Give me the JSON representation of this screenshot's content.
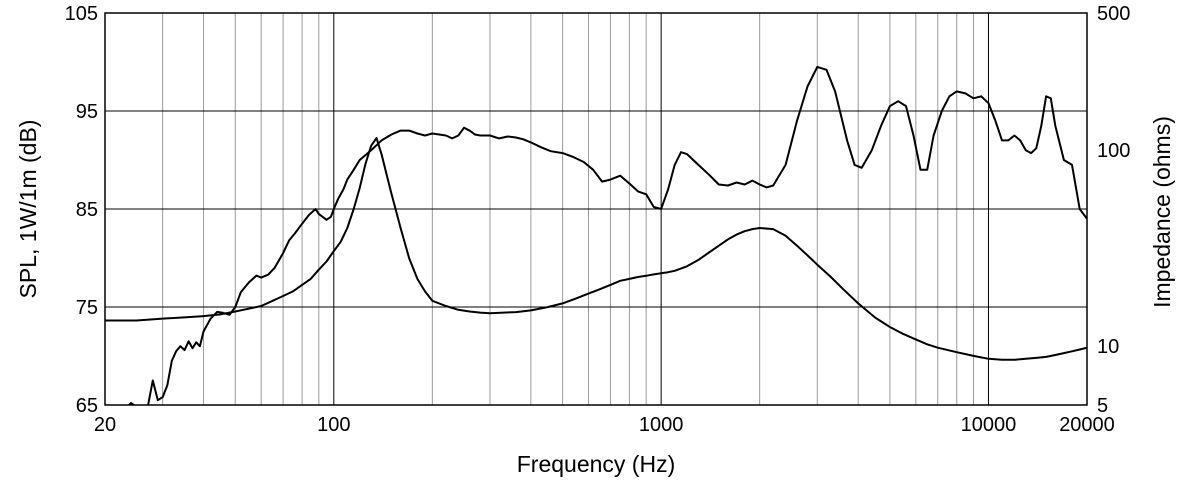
{
  "chart_data": {
    "type": "line",
    "xlabel": "Frequency (Hz)",
    "ylabel_left": "SPL, 1W/1m (dB)",
    "ylabel_right": "Impedance (ohms)",
    "x_scale": "log",
    "xlim": [
      20,
      20000
    ],
    "ylim_left": [
      65,
      105
    ],
    "ylim_right": [
      5,
      500
    ],
    "y_right_scale": "log",
    "grid": true,
    "x_ticks": [
      "20",
      "100",
      "1000",
      "10000",
      "20000"
    ],
    "y_left_ticks": [
      "65",
      "75",
      "85",
      "95",
      "105"
    ],
    "y_right_ticks": [
      "5",
      "10",
      "100",
      "500"
    ],
    "series": [
      {
        "axis": "left",
        "x": [
          20,
          22,
          23,
          24,
          25,
          26,
          27,
          28,
          29,
          30,
          31,
          32,
          33,
          34,
          35,
          36,
          37,
          38,
          39,
          40,
          42,
          44,
          46,
          48,
          50,
          52,
          55,
          58,
          60,
          63,
          66,
          70,
          73,
          76,
          80,
          84,
          88,
          90,
          95,
          98,
          100,
          103,
          107,
          110,
          115,
          120,
          125,
          130,
          135,
          140,
          150,
          160,
          170,
          180,
          190,
          200,
          210,
          220,
          230,
          240,
          250,
          260,
          270,
          280,
          300,
          320,
          340,
          360,
          380,
          400,
          430,
          460,
          500,
          540,
          580,
          620,
          660,
          700,
          750,
          800,
          850,
          900,
          950,
          1000,
          1050,
          1100,
          1150,
          1200,
          1300,
          1400,
          1500,
          1600,
          1700,
          1800,
          1900,
          2000,
          2100,
          2200,
          2400,
          2600,
          2800,
          3000,
          3200,
          3400,
          3700,
          3900,
          4100,
          4400,
          4700,
          5000,
          5300,
          5600,
          5900,
          6200,
          6500,
          6800,
          7200,
          7600,
          8000,
          8500,
          9000,
          9500,
          10000,
          10500,
          11000,
          11500,
          12000,
          12500,
          13000,
          13500,
          14000,
          14500,
          15000,
          15500,
          16000,
          17000,
          18000,
          19000,
          20000
        ],
        "values": [
          61.5,
          63.5,
          64.5,
          65.2,
          64.8,
          62.8,
          64.8,
          67.5,
          65.5,
          65.8,
          67.0,
          69.5,
          70.5,
          71.0,
          70.6,
          71.5,
          70.8,
          71.4,
          71.0,
          72.5,
          73.8,
          74.5,
          74.4,
          74.2,
          75.0,
          76.5,
          77.5,
          78.2,
          78.0,
          78.3,
          79.0,
          80.5,
          81.8,
          82.5,
          83.5,
          84.4,
          85.0,
          84.5,
          83.9,
          84.2,
          85.0,
          86.0,
          87.0,
          88.0,
          89.0,
          90.0,
          90.5,
          91.0,
          91.5,
          92.0,
          92.6,
          93.0,
          93.0,
          92.7,
          92.5,
          92.7,
          92.6,
          92.5,
          92.2,
          92.5,
          93.3,
          93.0,
          92.6,
          92.5,
          92.5,
          92.2,
          92.4,
          92.3,
          92.1,
          91.8,
          91.3,
          90.9,
          90.7,
          90.3,
          89.8,
          89.0,
          87.8,
          88.0,
          88.4,
          87.6,
          86.8,
          86.5,
          85.2,
          85.0,
          87.0,
          89.5,
          90.8,
          90.6,
          89.5,
          88.5,
          87.5,
          87.4,
          87.7,
          87.5,
          87.9,
          87.5,
          87.2,
          87.4,
          89.5,
          94.0,
          97.5,
          99.5,
          99.2,
          97.0,
          92.0,
          89.5,
          89.2,
          91.0,
          93.5,
          95.5,
          96.0,
          95.5,
          92.5,
          89.0,
          89.0,
          92.5,
          95.0,
          96.5,
          97.0,
          96.8,
          96.3,
          96.5,
          95.8,
          94.0,
          92.0,
          92.0,
          92.5,
          92.0,
          91.0,
          90.7,
          91.2,
          93.5,
          96.5,
          96.3,
          93.5,
          90.0,
          89.5,
          85.0,
          84.0
        ]
      },
      {
        "axis": "right",
        "x": [
          20,
          25,
          30,
          35,
          40,
          45,
          50,
          55,
          60,
          65,
          70,
          75,
          80,
          85,
          90,
          95,
          100,
          105,
          110,
          115,
          120,
          125,
          130,
          135,
          140,
          145,
          150,
          160,
          170,
          180,
          190,
          200,
          220,
          240,
          260,
          280,
          300,
          330,
          360,
          400,
          450,
          500,
          550,
          600,
          650,
          700,
          750,
          800,
          850,
          900,
          950,
          1000,
          1050,
          1100,
          1200,
          1300,
          1400,
          1500,
          1600,
          1700,
          1800,
          1900,
          2000,
          2200,
          2400,
          2600,
          2800,
          3000,
          3300,
          3600,
          4000,
          4500,
          5000,
          5500,
          6000,
          6500,
          7000,
          8000,
          9000,
          10000,
          11000,
          12000,
          13000,
          14000,
          15000,
          16000,
          17000,
          18000,
          19000,
          20000
        ],
        "values": [
          13.5,
          13.5,
          13.8,
          14.0,
          14.2,
          14.5,
          15.0,
          15.5,
          16.0,
          17.0,
          18.0,
          19.0,
          20.5,
          22.0,
          24.5,
          27.0,
          30.5,
          34.0,
          40.0,
          50.0,
          64.0,
          85.0,
          105.0,
          115.0,
          95.0,
          75.0,
          60.0,
          40.0,
          28.0,
          22.0,
          19.0,
          17.0,
          16.0,
          15.3,
          15.0,
          14.8,
          14.7,
          14.8,
          14.9,
          15.2,
          15.8,
          16.5,
          17.5,
          18.5,
          19.5,
          20.5,
          21.5,
          22.0,
          22.5,
          22.8,
          23.2,
          23.5,
          23.8,
          24.2,
          25.5,
          27.5,
          30.0,
          32.5,
          35.0,
          37.0,
          38.5,
          39.5,
          40.0,
          39.5,
          36.5,
          32.5,
          29.0,
          26.0,
          22.5,
          19.5,
          16.5,
          14.0,
          12.5,
          11.5,
          10.8,
          10.2,
          9.8,
          9.3,
          8.9,
          8.6,
          8.5,
          8.5,
          8.6,
          8.7,
          8.8,
          9.0,
          9.2,
          9.4,
          9.6,
          9.8
        ]
      }
    ]
  }
}
